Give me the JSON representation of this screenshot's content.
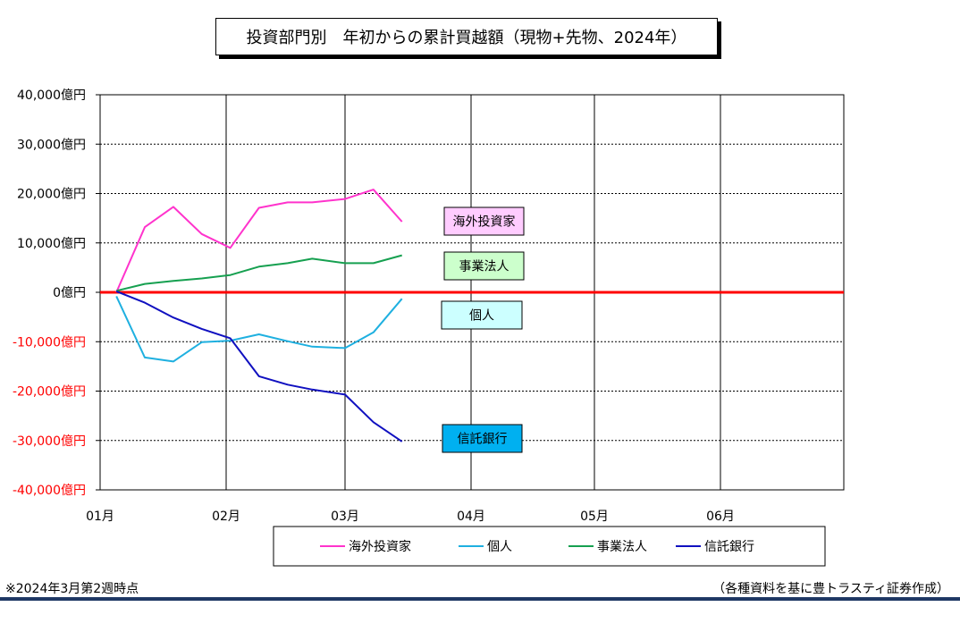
{
  "chart_data": {
    "type": "line",
    "title": "投資部門別　年初からの累計買越額（現物+先物、2024年）",
    "x_ticks": [
      "01月",
      "02月",
      "03月",
      "04月",
      "05月",
      "06月"
    ],
    "y_ticks": [
      "40,000億円",
      "30,000億円",
      "20,000億円",
      "10,000億円",
      "0億円",
      "-10,000億円",
      "-20,000億円",
      "-30,000億円",
      "-40,000億円"
    ],
    "ylim": [
      -40000,
      40000
    ],
    "grid": true,
    "legend_position": "bottom",
    "x": [
      "2024-01-05",
      "2024-01-12",
      "2024-01-19",
      "2024-01-26",
      "2024-02-02",
      "2024-02-09",
      "2024-02-16",
      "2024-02-22",
      "2024-03-01",
      "2024-03-08",
      "2024-03-15"
    ],
    "series": [
      {
        "name": "海外投資家",
        "color": "#ff33cc",
        "values": [
          0,
          13200,
          17300,
          11800,
          9000,
          17100,
          18200,
          18200,
          18900,
          20800,
          14300
        ]
      },
      {
        "name": "個人",
        "color": "#1fb0e0",
        "values": [
          -800,
          -13200,
          -14000,
          -10100,
          -9800,
          -8500,
          -9900,
          -11000,
          -11300,
          -8100,
          -1300
        ]
      },
      {
        "name": "事業法人",
        "color": "#16a050",
        "values": [
          300,
          1700,
          2300,
          2800,
          3500,
          5200,
          5900,
          6800,
          5900,
          5900,
          7500
        ]
      },
      {
        "name": "信託銀行",
        "color": "#1010c0",
        "values": [
          200,
          -2100,
          -5100,
          -7400,
          -9300,
          -17000,
          -18700,
          -19700,
          -20700,
          -26300,
          -30200
        ]
      }
    ],
    "annotations": [
      {
        "text": "海外投資家",
        "series": "海外投資家",
        "bg": "#ffccff"
      },
      {
        "text": "事業法人",
        "series": "事業法人",
        "bg": "#ccffcc"
      },
      {
        "text": "個人",
        "series": "個人",
        "bg": "#ccffff"
      },
      {
        "text": "信託銀行",
        "series": "信託銀行",
        "bg": "#00b0f0"
      }
    ],
    "zero_line_color": "#ff0000",
    "negative_tick_color": "#ff0000"
  },
  "footnote": "※2024年3月第2週時点",
  "source": "（各種資料を基に豊トラスティ証券作成）"
}
